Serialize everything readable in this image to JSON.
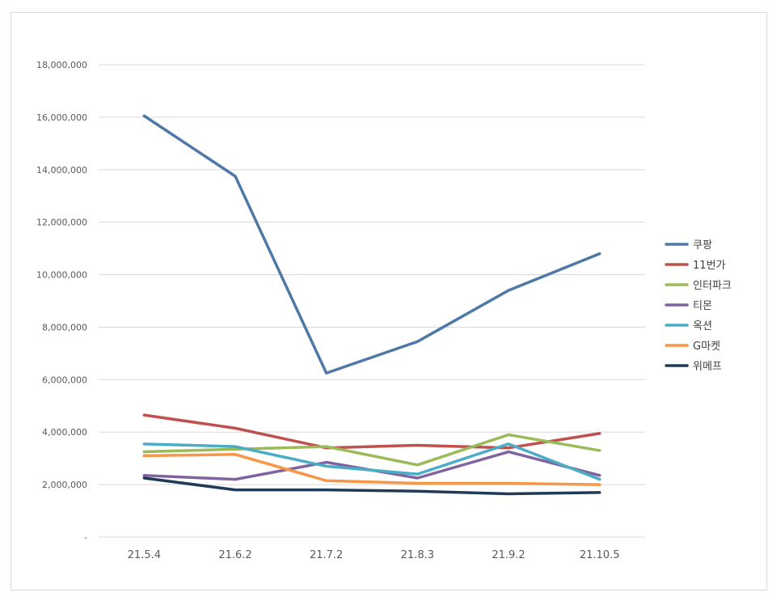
{
  "chart_data": {
    "type": "line",
    "title": "",
    "xlabel": "",
    "ylabel": "",
    "categories": [
      "21.5.4",
      "21.6.2",
      "21.7.2",
      "21.8.3",
      "21.9.2",
      "21.10.5"
    ],
    "ylim": [
      0,
      18000000
    ],
    "yticks": [
      0,
      2000000,
      4000000,
      6000000,
      8000000,
      10000000,
      12000000,
      14000000,
      16000000,
      18000000
    ],
    "ytick_labels": [
      "-",
      "2,000,000",
      "4,000,000",
      "6,000,000",
      "8,000,000",
      "10,000,000",
      "12,000,000",
      "14,000,000",
      "16,000,000",
      "18,000,000"
    ],
    "grid": true,
    "legend_position": "right",
    "series": [
      {
        "name": "쿠팡",
        "color": "#4e79a7",
        "values": [
          16050000,
          13750000,
          6250000,
          7450000,
          9400000,
          10800000
        ]
      },
      {
        "name": "11번가",
        "color": "#c0504d",
        "values": [
          4650000,
          4150000,
          3400000,
          3500000,
          3400000,
          3950000
        ]
      },
      {
        "name": "인터파크",
        "color": "#9bbb59",
        "values": [
          3250000,
          3350000,
          3450000,
          2750000,
          3900000,
          3300000
        ]
      },
      {
        "name": "티몬",
        "color": "#8064a2",
        "values": [
          2350000,
          2200000,
          2850000,
          2250000,
          3250000,
          2350000
        ]
      },
      {
        "name": "옥션",
        "color": "#4bacc6",
        "values": [
          3550000,
          3450000,
          2700000,
          2400000,
          3550000,
          2200000
        ]
      },
      {
        "name": "G마켓",
        "color": "#f79646",
        "values": [
          3100000,
          3150000,
          2150000,
          2050000,
          2050000,
          2000000
        ]
      },
      {
        "name": "위메프",
        "color": "#1f3b57",
        "values": [
          2250000,
          1800000,
          1800000,
          1750000,
          1650000,
          1700000
        ]
      }
    ]
  }
}
